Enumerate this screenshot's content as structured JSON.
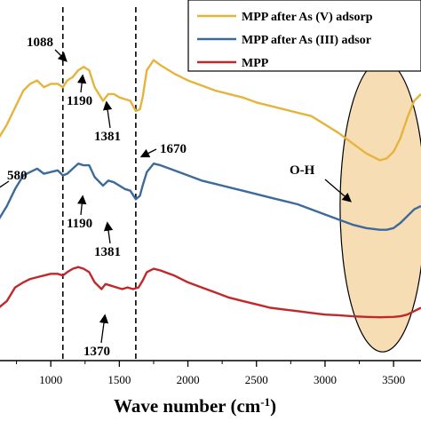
{
  "chart_data": {
    "type": "line",
    "xlabel": "Wave number (cm",
    "xlabel_sup": "-1",
    "xlabel_close": ")",
    "x_ticks": [
      1000,
      1500,
      2000,
      2500,
      3000,
      3500
    ],
    "xlim": [
      500,
      3700
    ],
    "legend_position": "top-right",
    "grid": false,
    "series": [
      {
        "name": "MPP after As (V) adsorp",
        "color": "#E6B43C",
        "points": [
          [
            500,
            0.58
          ],
          [
            560,
            0.6
          ],
          [
            620,
            0.64
          ],
          [
            680,
            0.68
          ],
          [
            740,
            0.73
          ],
          [
            800,
            0.78
          ],
          [
            850,
            0.8
          ],
          [
            900,
            0.81
          ],
          [
            950,
            0.79
          ],
          [
            1000,
            0.8
          ],
          [
            1050,
            0.8
          ],
          [
            1088,
            0.79
          ],
          [
            1120,
            0.81
          ],
          [
            1160,
            0.82
          ],
          [
            1200,
            0.84
          ],
          [
            1240,
            0.85
          ],
          [
            1280,
            0.84
          ],
          [
            1320,
            0.79
          ],
          [
            1381,
            0.75
          ],
          [
            1420,
            0.77
          ],
          [
            1460,
            0.77
          ],
          [
            1500,
            0.76
          ],
          [
            1540,
            0.755
          ],
          [
            1580,
            0.75
          ],
          [
            1620,
            0.72
          ],
          [
            1650,
            0.725
          ],
          [
            1670,
            0.76
          ],
          [
            1700,
            0.84
          ],
          [
            1750,
            0.87
          ],
          [
            1800,
            0.855
          ],
          [
            1900,
            0.83
          ],
          [
            2000,
            0.81
          ],
          [
            2100,
            0.795
          ],
          [
            2200,
            0.78
          ],
          [
            2300,
            0.77
          ],
          [
            2400,
            0.76
          ],
          [
            2500,
            0.745
          ],
          [
            2600,
            0.735
          ],
          [
            2700,
            0.725
          ],
          [
            2800,
            0.715
          ],
          [
            2900,
            0.705
          ],
          [
            3000,
            0.68
          ],
          [
            3100,
            0.655
          ],
          [
            3200,
            0.625
          ],
          [
            3300,
            0.595
          ],
          [
            3400,
            0.575
          ],
          [
            3450,
            0.58
          ],
          [
            3500,
            0.6
          ],
          [
            3550,
            0.64
          ],
          [
            3600,
            0.7
          ],
          [
            3650,
            0.75
          ],
          [
            3700,
            0.77
          ]
        ]
      },
      {
        "name": "MPP after As (III) adsor",
        "color": "#3D6A9C",
        "points": [
          [
            500,
            0.36
          ],
          [
            560,
            0.37
          ],
          [
            620,
            0.4
          ],
          [
            680,
            0.44
          ],
          [
            740,
            0.49
          ],
          [
            800,
            0.53
          ],
          [
            850,
            0.54
          ],
          [
            900,
            0.55
          ],
          [
            950,
            0.535
          ],
          [
            1000,
            0.54
          ],
          [
            1050,
            0.545
          ],
          [
            1088,
            0.53
          ],
          [
            1120,
            0.535
          ],
          [
            1160,
            0.55
          ],
          [
            1200,
            0.565
          ],
          [
            1240,
            0.56
          ],
          [
            1280,
            0.56
          ],
          [
            1320,
            0.525
          ],
          [
            1381,
            0.5
          ],
          [
            1420,
            0.515
          ],
          [
            1460,
            0.51
          ],
          [
            1500,
            0.5
          ],
          [
            1540,
            0.49
          ],
          [
            1580,
            0.485
          ],
          [
            1620,
            0.46
          ],
          [
            1650,
            0.47
          ],
          [
            1670,
            0.5
          ],
          [
            1700,
            0.54
          ],
          [
            1750,
            0.565
          ],
          [
            1800,
            0.56
          ],
          [
            1900,
            0.545
          ],
          [
            2000,
            0.53
          ],
          [
            2100,
            0.515
          ],
          [
            2200,
            0.505
          ],
          [
            2300,
            0.495
          ],
          [
            2400,
            0.485
          ],
          [
            2500,
            0.475
          ],
          [
            2600,
            0.465
          ],
          [
            2700,
            0.455
          ],
          [
            2800,
            0.445
          ],
          [
            2900,
            0.43
          ],
          [
            3000,
            0.415
          ],
          [
            3100,
            0.4
          ],
          [
            3200,
            0.385
          ],
          [
            3300,
            0.375
          ],
          [
            3400,
            0.37
          ],
          [
            3450,
            0.37
          ],
          [
            3500,
            0.375
          ],
          [
            3550,
            0.39
          ],
          [
            3600,
            0.41
          ],
          [
            3650,
            0.43
          ],
          [
            3700,
            0.44
          ]
        ]
      },
      {
        "name": "MPP",
        "color": "#C0282A",
        "points": [
          [
            500,
            0.13
          ],
          [
            560,
            0.135
          ],
          [
            620,
            0.14
          ],
          [
            680,
            0.16
          ],
          [
            740,
            0.2
          ],
          [
            800,
            0.215
          ],
          [
            850,
            0.225
          ],
          [
            900,
            0.23
          ],
          [
            950,
            0.235
          ],
          [
            1000,
            0.24
          ],
          [
            1050,
            0.24
          ],
          [
            1088,
            0.235
          ],
          [
            1120,
            0.245
          ],
          [
            1160,
            0.255
          ],
          [
            1200,
            0.26
          ],
          [
            1240,
            0.255
          ],
          [
            1280,
            0.245
          ],
          [
            1320,
            0.215
          ],
          [
            1370,
            0.195
          ],
          [
            1400,
            0.21
          ],
          [
            1440,
            0.205
          ],
          [
            1480,
            0.2
          ],
          [
            1520,
            0.195
          ],
          [
            1560,
            0.2
          ],
          [
            1600,
            0.195
          ],
          [
            1640,
            0.2
          ],
          [
            1670,
            0.22
          ],
          [
            1700,
            0.245
          ],
          [
            1750,
            0.255
          ],
          [
            1800,
            0.25
          ],
          [
            1900,
            0.235
          ],
          [
            2000,
            0.215
          ],
          [
            2100,
            0.2
          ],
          [
            2200,
            0.185
          ],
          [
            2300,
            0.17
          ],
          [
            2400,
            0.16
          ],
          [
            2500,
            0.15
          ],
          [
            2600,
            0.14
          ],
          [
            2700,
            0.135
          ],
          [
            2800,
            0.13
          ],
          [
            2900,
            0.125
          ],
          [
            3000,
            0.12
          ],
          [
            3100,
            0.118
          ],
          [
            3200,
            0.115
          ],
          [
            3300,
            0.113
          ],
          [
            3400,
            0.112
          ],
          [
            3500,
            0.113
          ],
          [
            3550,
            0.115
          ],
          [
            3600,
            0.12
          ],
          [
            3650,
            0.13
          ],
          [
            3700,
            0.14
          ]
        ]
      }
    ],
    "reference_lines": [
      {
        "x": 1088,
        "style": "dashed"
      },
      {
        "x": 1620,
        "style": "dashed"
      }
    ],
    "annotations": [
      {
        "text": "1088",
        "x": 1088,
        "y": 0.93,
        "arrow": true
      },
      {
        "text": "1190",
        "x": 1190,
        "y": 0.66,
        "arrow": true
      },
      {
        "text": "1381",
        "x": 1381,
        "y": 0.62,
        "arrow": true
      },
      {
        "text": "1670",
        "x": 1670,
        "y": 0.64,
        "arrow": true
      },
      {
        "text": "580",
        "x": 580,
        "y": 0.54,
        "arrow": false
      },
      {
        "text": "1190",
        "x": 1190,
        "y": 0.43,
        "arrow": true
      },
      {
        "text": "1381",
        "x": 1381,
        "y": 0.4,
        "arrow": true
      },
      {
        "text": "1370",
        "x": 1370,
        "y": 0.11,
        "arrow": true
      },
      {
        "text": "O-H",
        "x": 2930,
        "y": 0.6,
        "arrow": true
      }
    ],
    "highlight": {
      "label": "O-H",
      "center_x": 3420,
      "center_y": 0.44,
      "rx": 310,
      "ry": 0.43,
      "fill": "#F7DDB4"
    },
    "ylim": [
      0,
      1
    ]
  }
}
